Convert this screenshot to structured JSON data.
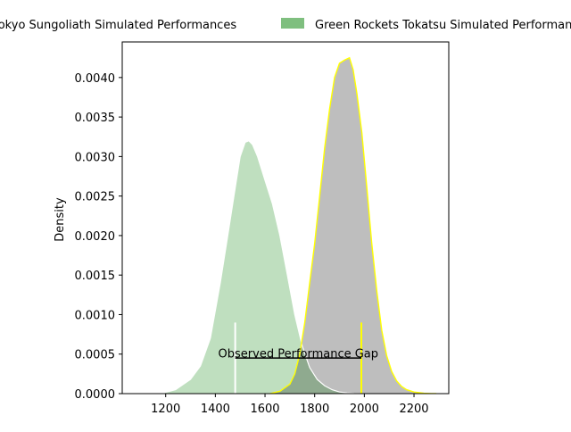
{
  "colors": {
    "tokyo_fill": "#bebebe",
    "tokyo_edge": "#ffff00",
    "green_fill": "#bfdfbf",
    "green_edge": "#ffffff",
    "overlap_fill": "#8faa8f",
    "legend_tokyo_patch": "#bebebe",
    "legend_green_patch": "#7fbf7f",
    "tokyo_marker": "#ffff00",
    "green_marker": "#ffffff",
    "gap_line": "#000000"
  },
  "chart_data": {
    "type": "area",
    "title": "",
    "xlabel": "",
    "ylabel": "Density",
    "xlim": [
      1025,
      2340
    ],
    "ylim": [
      0,
      0.00445
    ],
    "grid": false,
    "legend_position": "top, outside plot",
    "x_ticks": [
      1200,
      1400,
      1600,
      1800,
      2000,
      2200
    ],
    "y_ticks": [
      0.0,
      0.0005,
      0.001,
      0.0015,
      0.002,
      0.0025,
      0.003,
      0.0035,
      0.004
    ],
    "y_tick_labels": [
      "0.0000",
      "0.0005",
      "0.0010",
      "0.0015",
      "0.0020",
      "0.0025",
      "0.0030",
      "0.0035",
      "0.0040"
    ],
    "series": [
      {
        "name": "Tokyo Sungoliath Simulated Performances",
        "x": [
          1620,
          1660,
          1700,
          1720,
          1740,
          1760,
          1780,
          1800,
          1820,
          1840,
          1860,
          1880,
          1900,
          1920,
          1940,
          1955,
          1970,
          1990,
          2010,
          2030,
          2050,
          2070,
          2090,
          2110,
          2130,
          2150,
          2170,
          2200,
          2240,
          2270,
          2290
        ],
        "values": [
          0.0,
          3e-05,
          0.00012,
          0.00025,
          0.0005,
          0.0009,
          0.0014,
          0.0019,
          0.0025,
          0.0031,
          0.0036,
          0.004,
          0.00418,
          0.00422,
          0.00425,
          0.0041,
          0.0038,
          0.0033,
          0.0026,
          0.0019,
          0.0013,
          0.0008,
          0.00048,
          0.00028,
          0.00016,
          9e-05,
          5e-05,
          2e-05,
          5e-06,
          1e-06,
          0.0
        ]
      },
      {
        "name": "Green Rockets Tokatsu Simulated Performances",
        "x": [
          1180,
          1240,
          1300,
          1340,
          1380,
          1420,
          1450,
          1480,
          1500,
          1520,
          1535,
          1550,
          1570,
          1600,
          1630,
          1660,
          1690,
          1720,
          1750,
          1780,
          1810,
          1840,
          1870,
          1900,
          1930,
          1960,
          1990
        ],
        "values": [
          0.0,
          5e-05,
          0.00018,
          0.00035,
          0.0007,
          0.0014,
          0.002,
          0.0026,
          0.003,
          0.00318,
          0.0032,
          0.00315,
          0.003,
          0.0027,
          0.0024,
          0.002,
          0.0015,
          0.001,
          0.0006,
          0.00033,
          0.00018,
          0.0001,
          5e-05,
          2e-05,
          1e-05,
          3e-06,
          0.0
        ]
      }
    ],
    "markers": [
      {
        "series": "Green Rockets Tokatsu Simulated Performances",
        "x": 1480,
        "y_top": 0.0009
      },
      {
        "series": "Tokyo Sungoliath Simulated Performances",
        "x": 1988,
        "y_top": 0.0009
      }
    ],
    "annotation": {
      "text": "Observed Performance Gap",
      "x_start": 1480,
      "x_end": 1988,
      "y": 0.00045,
      "text_y": 0.0005
    }
  }
}
